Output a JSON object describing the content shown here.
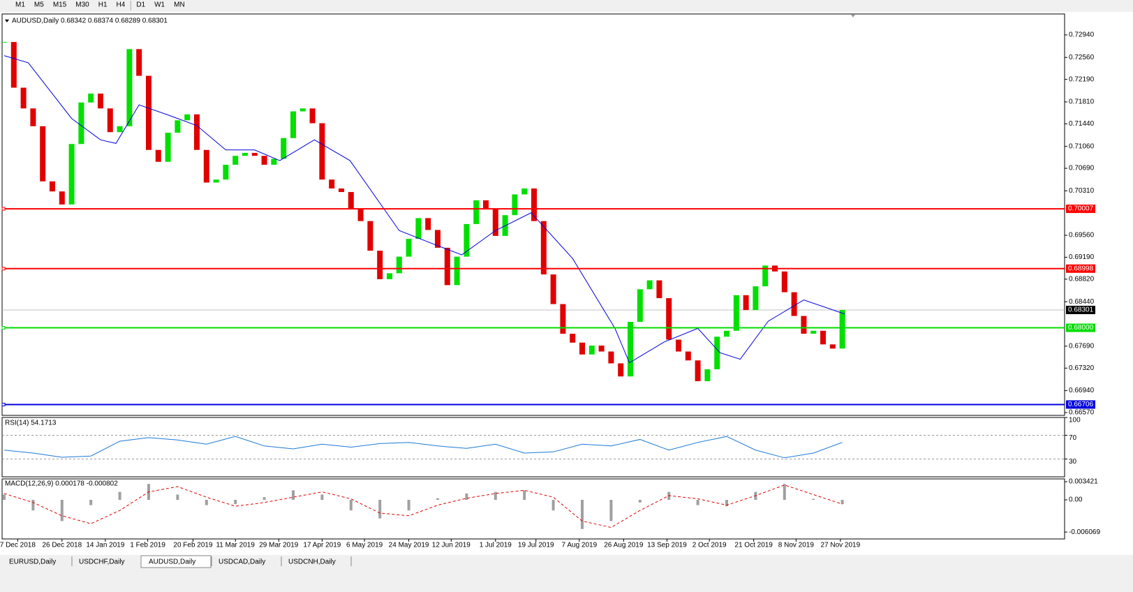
{
  "toolbar": [
    "M1",
    "M5",
    "M15",
    "M30",
    "H1",
    "H4",
    "D1",
    "W1",
    "MN"
  ],
  "tabs": [
    "EURUSD,Daily",
    "USDCHF,Daily",
    "AUDUSD,Daily",
    "USDCAD,Daily",
    "USDCNH,Daily"
  ],
  "active_tab": 2,
  "chart_data": [
    {
      "type": "candlestick",
      "title": "AUDUSD,Daily  0.68342 0.68374 0.68289 0.68301",
      "bull_color": "#00e000",
      "bear_color": "#e00000",
      "close": [
        0.7282,
        0.7205,
        0.717,
        0.714,
        0.7047,
        0.703,
        0.7008,
        0.711,
        0.718,
        0.7195,
        0.717,
        0.713,
        0.714,
        0.727,
        0.7225,
        0.71,
        0.708,
        0.7129,
        0.715,
        0.716,
        0.71,
        0.7045,
        0.705,
        0.7075,
        0.709,
        0.7095,
        0.709,
        0.7075,
        0.7085,
        0.712,
        0.7165,
        0.717,
        0.7145,
        0.705,
        0.7035,
        0.7029,
        0.7,
        0.698,
        0.693,
        0.6882,
        0.6892,
        0.692,
        0.695,
        0.6985,
        0.6965,
        0.6935,
        0.6872,
        0.692,
        0.6975,
        0.7015,
        0.7,
        0.6955,
        0.699,
        0.7025,
        0.7035,
        0.698,
        0.689,
        0.684,
        0.679,
        0.6775,
        0.6755,
        0.677,
        0.676,
        0.674,
        0.6718,
        0.681,
        0.6865,
        0.688,
        0.685,
        0.678,
        0.676,
        0.6745,
        0.671,
        0.673,
        0.6785,
        0.6795,
        0.6855,
        0.683,
        0.687,
        0.6905,
        0.6895,
        0.686,
        0.682,
        0.679,
        0.6795,
        0.6772,
        0.6765,
        0.683
      ],
      "ma": {
        "name": "MA",
        "color": "#0000dd",
        "x": [
          0,
          2.5,
          7,
          10,
          11.6,
          14,
          17,
          20,
          23,
          26,
          28.6,
          32.2,
          35.9,
          41,
          44.6,
          47.5,
          51,
          54.7,
          59,
          63.4,
          64.9,
          68.5,
          72,
          74.3,
          76.4,
          79.3,
          83,
          87.3
        ],
        "values": [
          0.7259,
          0.7247,
          0.7153,
          0.7117,
          0.7111,
          0.7176,
          0.7159,
          0.7141,
          0.71,
          0.71,
          0.7082,
          0.7117,
          0.7082,
          0.6964,
          0.6941,
          0.6923,
          0.6964,
          0.6994,
          0.6917,
          0.6799,
          0.6741,
          0.6776,
          0.6799,
          0.6758,
          0.6747,
          0.6811,
          0.6847,
          0.6823
        ]
      },
      "ylim": [
        0.66523,
        0.73293
      ],
      "yticks": [
        {
          "value": 0.7294,
          "label": "0.72940"
        },
        {
          "value": 0.7256,
          "label": "0.72560"
        },
        {
          "value": 0.7219,
          "label": "0.72190"
        },
        {
          "value": 0.7181,
          "label": "0.71810"
        },
        {
          "value": 0.7144,
          "label": "0.71440"
        },
        {
          "value": 0.7106,
          "label": "0.71060"
        },
        {
          "value": 0.7069,
          "label": "0.70690"
        },
        {
          "value": 0.7031,
          "label": "0.70310"
        },
        {
          "value": 0.6956,
          "label": "0.69560"
        },
        {
          "value": 0.6919,
          "label": "0.69190"
        },
        {
          "value": 0.6882,
          "label": "0.68820"
        },
        {
          "value": 0.6844,
          "label": "0.68440"
        },
        {
          "value": 0.6769,
          "label": "0.67690"
        },
        {
          "value": 0.6732,
          "label": "0.67320"
        },
        {
          "value": 0.6694,
          "label": "0.66940"
        },
        {
          "value": 0.6657,
          "label": "0.66570"
        }
      ],
      "levels": [
        {
          "value": 0.70007,
          "label": "0.70007",
          "color": "#ff0000"
        },
        {
          "value": 0.68998,
          "label": "0.68998",
          "color": "#ff0000"
        },
        {
          "value": 0.68,
          "label": "0.68000",
          "color": "#00dd00"
        },
        {
          "value": 0.66706,
          "label": "0.66706",
          "color": "#0000dd"
        }
      ],
      "current": {
        "value": 0.68301,
        "label": "0.68301"
      },
      "xticks": [
        {
          "value": 1.4,
          "label": "7 Dec 2018"
        },
        {
          "value": 6,
          "label": "26 Dec 2018"
        },
        {
          "value": 10.5,
          "label": "14 Jan 2019"
        },
        {
          "value": 14.9,
          "label": "1 Feb 2019"
        },
        {
          "value": 19.6,
          "label": "20 Feb 2019"
        },
        {
          "value": 24,
          "label": "11 Mar 2019"
        },
        {
          "value": 28.5,
          "label": "29 Mar 2019"
        },
        {
          "value": 33,
          "label": "17 Apr 2019"
        },
        {
          "value": 37.4,
          "label": "6 May 2019"
        },
        {
          "value": 42,
          "label": "24 May 2019"
        },
        {
          "value": 46.4,
          "label": "12 Jun 2019"
        },
        {
          "value": 51,
          "label": "1 Jul 2019"
        },
        {
          "value": 55.2,
          "label": "19 Jul 2019"
        },
        {
          "value": 59.7,
          "label": "7 Aug 2019"
        },
        {
          "value": 64.3,
          "label": "26 Aug 2019"
        },
        {
          "value": 68.8,
          "label": "13 Sep 2019"
        },
        {
          "value": 73.2,
          "label": "2 Oct 2019"
        },
        {
          "value": 77.8,
          "label": "21 Oct 2019"
        },
        {
          "value": 82.2,
          "label": "8 Nov 2019"
        },
        {
          "value": 86.8,
          "label": "27 Nov 2019"
        }
      ]
    },
    {
      "type": "line",
      "title": "RSI(14) 54.1713",
      "color": "#1e78d8",
      "x": [
        0,
        3,
        6,
        9,
        12,
        15,
        18,
        21,
        24,
        27,
        30,
        33,
        36,
        39,
        42,
        45,
        48,
        51,
        54,
        57,
        60,
        63,
        66,
        69,
        72,
        75,
        78,
        81,
        84,
        87
      ],
      "values": [
        45,
        40,
        33,
        35,
        60,
        66,
        62,
        55,
        68,
        52,
        47,
        55,
        50,
        56,
        58,
        52,
        48,
        55,
        40,
        42,
        55,
        52,
        63,
        45,
        58,
        68,
        45,
        32,
        40,
        58
      ],
      "ylim": [
        0,
        100
      ],
      "yticks": [
        100,
        70,
        30
      ],
      "levels": [
        70,
        30
      ]
    },
    {
      "type": "macd",
      "title": "MACD(12,26,9) 0.000178 -0.000802",
      "x": [
        0,
        3,
        6,
        9,
        12,
        15,
        18,
        21,
        24,
        27,
        30,
        33,
        36,
        39,
        42,
        45,
        48,
        51,
        54,
        57,
        60,
        63,
        66,
        69,
        72,
        75,
        78,
        81,
        84,
        87
      ],
      "histogram": {
        "color": "#a0a0a0",
        "values": [
          0.001,
          -0.002,
          -0.004,
          -0.001,
          0.0015,
          0.003,
          0.001,
          -0.001,
          -0.0008,
          0.0005,
          0.0018,
          0.001,
          -0.002,
          -0.0035,
          -0.002,
          0.0003,
          0.0012,
          0.0015,
          0.0018,
          -0.002,
          -0.0055,
          -0.004,
          -0.0005,
          0.0015,
          -0.001,
          -0.0012,
          0.0015,
          0.003,
          0.0002,
          -0.0008
        ]
      },
      "signal": {
        "color": "#e00000",
        "values": [
          0.0012,
          -0.0005,
          -0.003,
          -0.0045,
          -0.002,
          0.0015,
          0.0025,
          0.0005,
          -0.0012,
          -0.0005,
          0.0005,
          0.0015,
          0.0002,
          -0.0025,
          -0.003,
          -0.001,
          0.0003,
          0.0012,
          0.0018,
          0.0005,
          -0.004,
          -0.0052,
          -0.002,
          0.0008,
          0.0002,
          -0.001,
          0.0008,
          0.0028,
          0.001,
          -0.0008
        ]
      },
      "ylim": [
        -0.00737,
        0.00395
      ],
      "yticks": [
        0.003421,
        {
          "value": 0,
          "label": "0.00"
        },
        -0.006069
      ]
    }
  ]
}
